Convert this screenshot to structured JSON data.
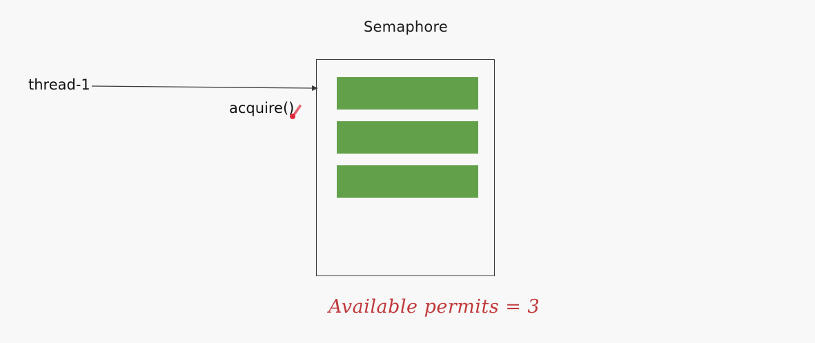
{
  "diagram": {
    "title": "Semaphore",
    "thread": {
      "label": "thread-1"
    },
    "action": {
      "label": "acquire()"
    },
    "permits": [
      {
        "id": "permit-1"
      },
      {
        "id": "permit-2"
      },
      {
        "id": "permit-3"
      }
    ],
    "status": {
      "text": "Available permits = 3"
    },
    "colors": {
      "permit": "#63a04a",
      "status": "#c0393b",
      "cursor": "#e0283a"
    },
    "icons": {
      "cursor": "laser-pen-cursor-icon",
      "arrow": "arrow-right-icon"
    }
  }
}
